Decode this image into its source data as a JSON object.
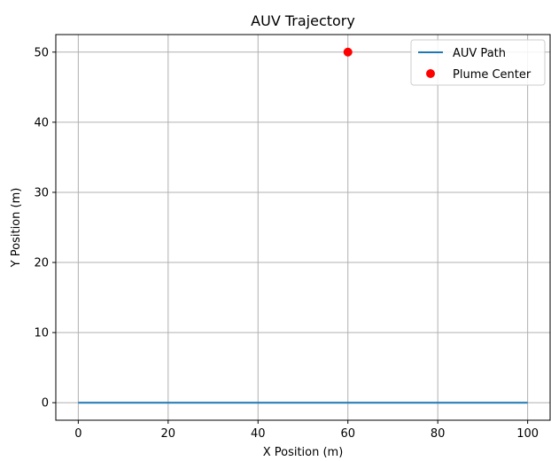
{
  "chart_data": {
    "type": "line",
    "title": "AUV Trajectory",
    "xlabel": "X Position (m)",
    "ylabel": "Y Position (m)",
    "xlim": [
      -5,
      105
    ],
    "ylim": [
      -2.5,
      52.5
    ],
    "xticks": [
      0,
      20,
      40,
      60,
      80,
      100
    ],
    "yticks": [
      0,
      10,
      20,
      30,
      40,
      50
    ],
    "grid": true,
    "legend_position": "upper right",
    "series": [
      {
        "name": "AUV Path",
        "kind": "line",
        "color": "#1f77b4",
        "x": [
          0,
          100
        ],
        "y": [
          0,
          0
        ]
      },
      {
        "name": "Plume Center",
        "kind": "scatter",
        "color": "#ff0000",
        "x": [
          60
        ],
        "y": [
          50
        ]
      }
    ]
  }
}
